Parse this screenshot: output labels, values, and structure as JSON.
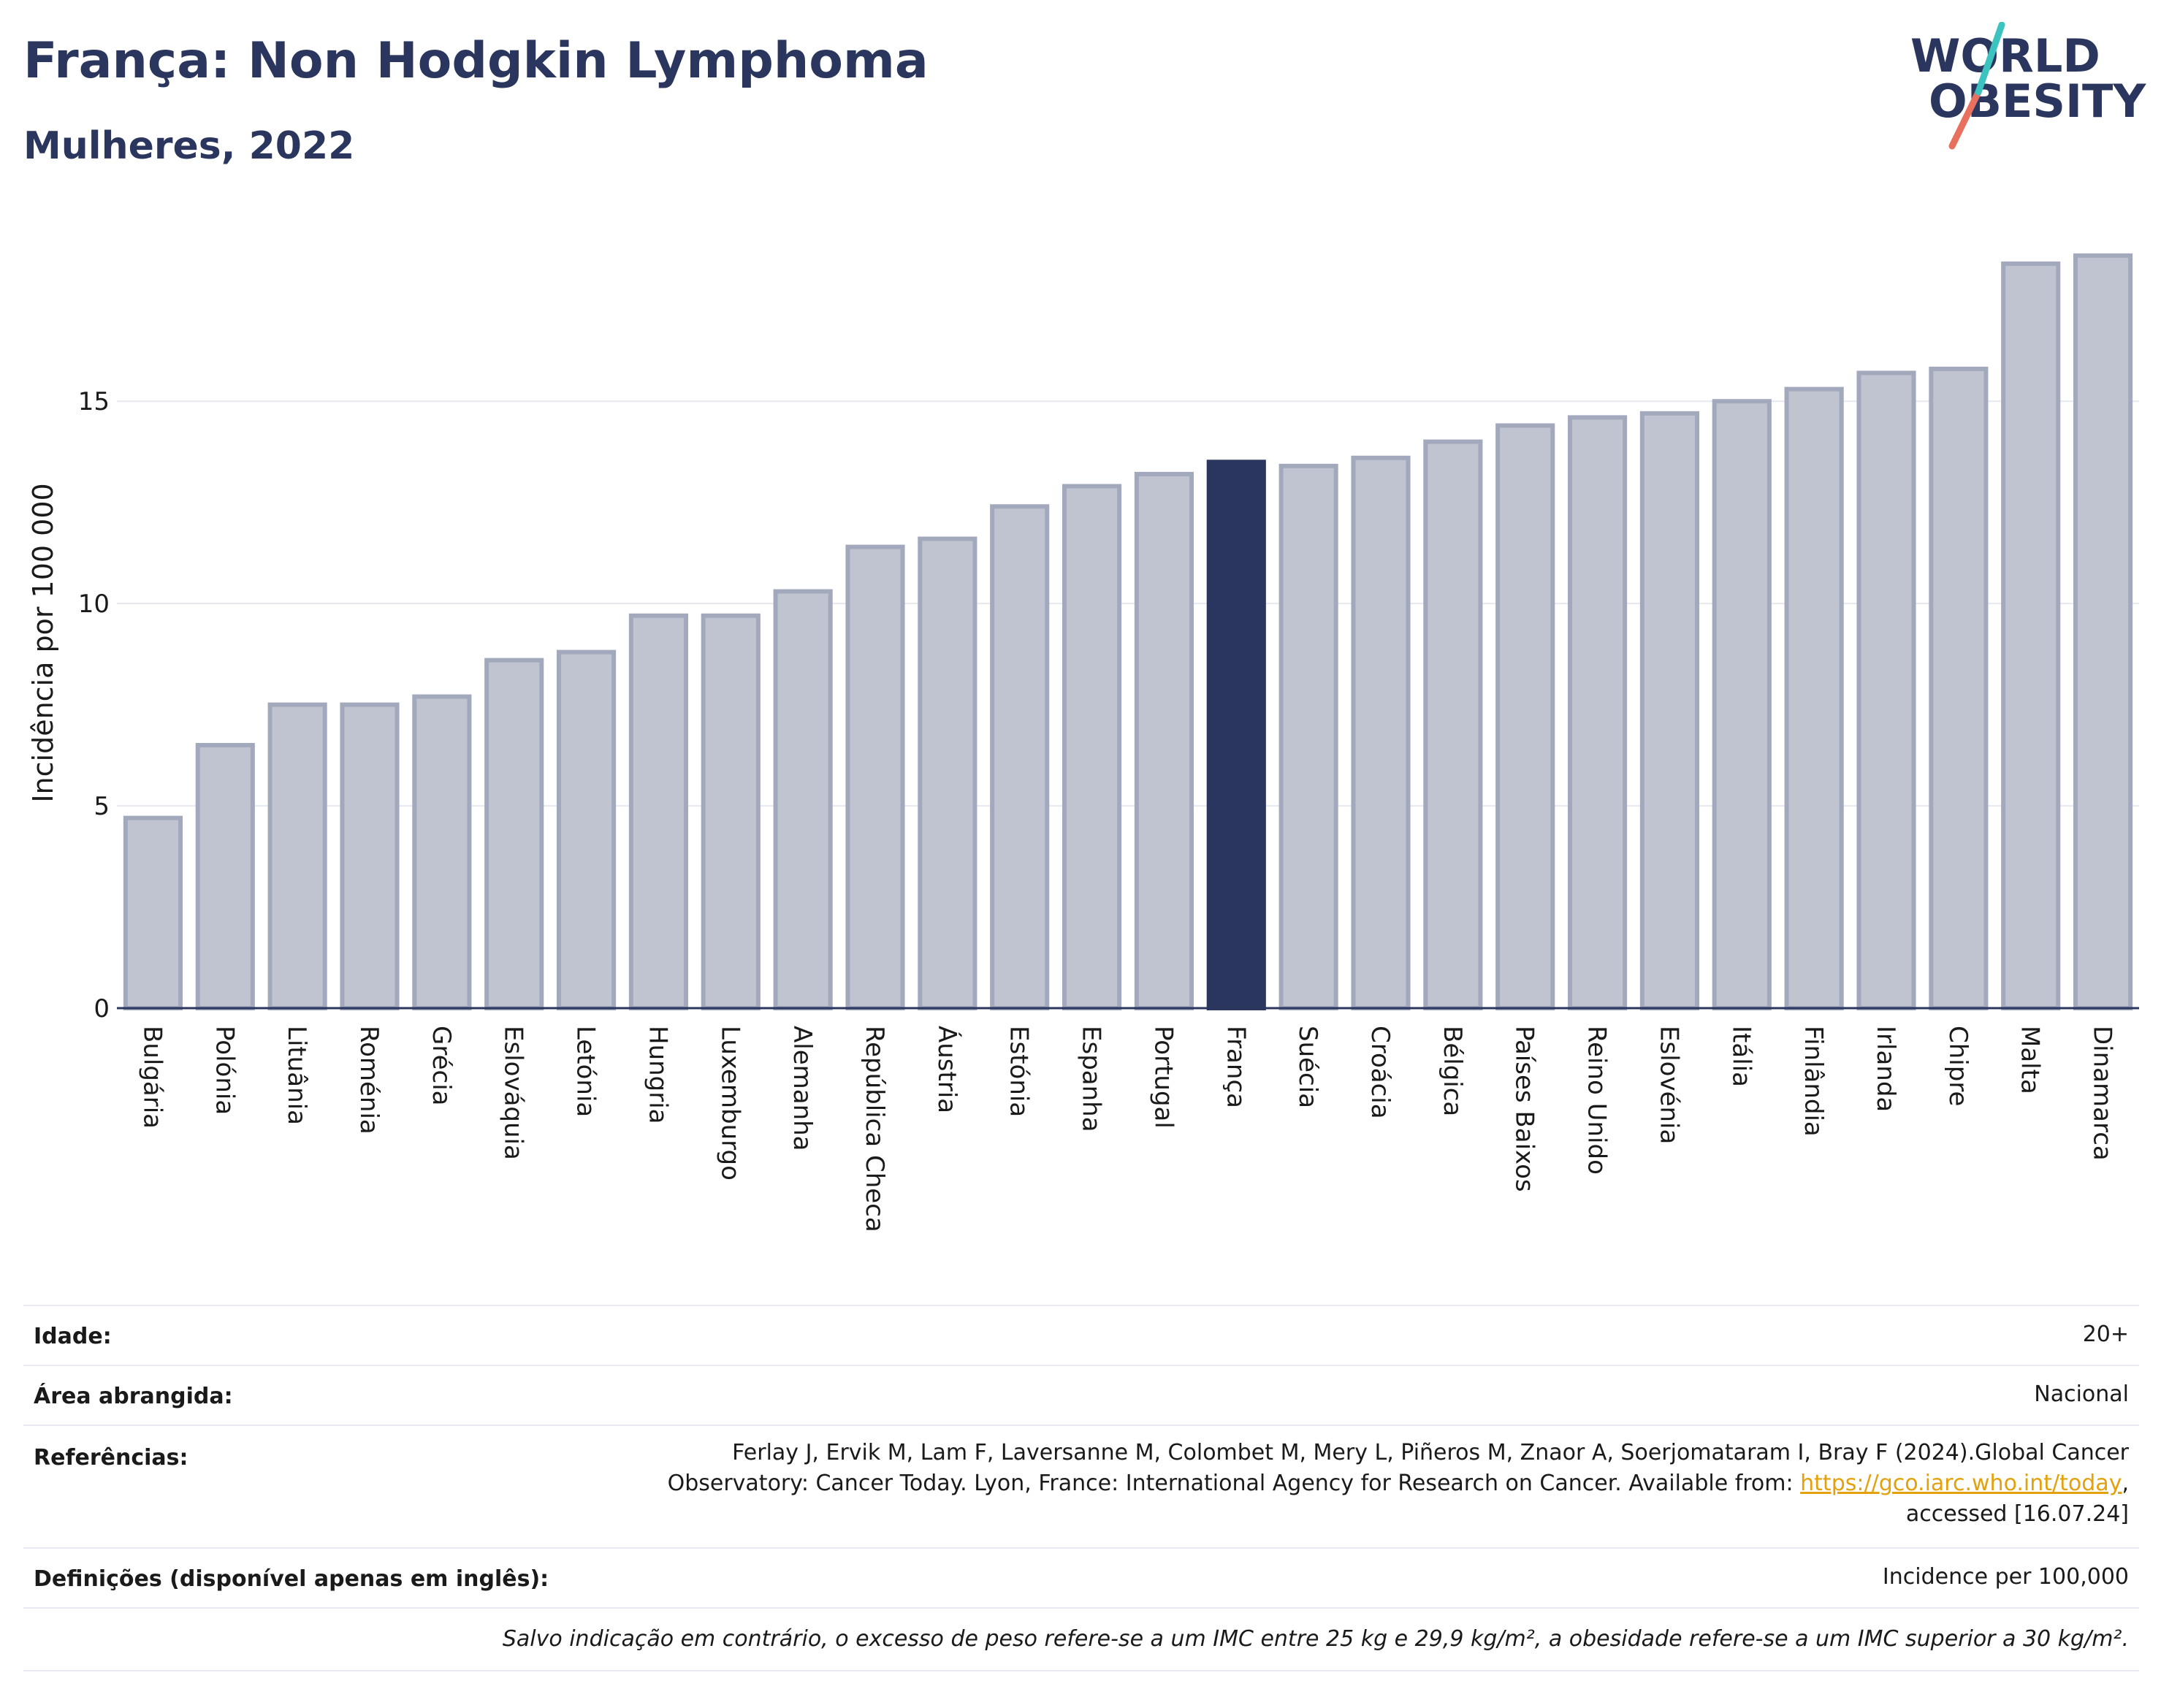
{
  "header": {
    "title": "França: Non Hodgkin Lymphoma",
    "subtitle": "Mulheres, 2022"
  },
  "logo": {
    "line1": "WORLD",
    "line2": "OBESITY"
  },
  "chart_data": {
    "type": "bar",
    "ylabel": "Incidência por 100 000",
    "ylim": [
      0,
      19.5
    ],
    "yticks": [
      0,
      5,
      10,
      15
    ],
    "grid": true,
    "highlight": "França",
    "highlight_color": "#2b365f",
    "bar_color": "#c0c4d0",
    "bar_edge_color": "#a3a9bd",
    "categories": [
      "Bulgária",
      "Polónia",
      "Lituânia",
      "Roménia",
      "Grécia",
      "Eslováquia",
      "Letónia",
      "Hungria",
      "Luxemburgo",
      "Alemanha",
      "República Checa",
      "Áustria",
      "Estónia",
      "Espanha",
      "Portugal",
      "França",
      "Suécia",
      "Croácia",
      "Bélgica",
      "Países Baixos",
      "Reino Unido",
      "Eslovénia",
      "Itália",
      "Finlândia",
      "Irlanda",
      "Chipre",
      "Malta",
      "Dinamarca"
    ],
    "values": [
      4.7,
      6.5,
      7.5,
      7.5,
      7.7,
      8.6,
      8.8,
      9.7,
      9.7,
      10.3,
      11.4,
      11.6,
      12.4,
      12.9,
      13.2,
      13.5,
      13.4,
      13.6,
      14.0,
      14.4,
      14.6,
      14.7,
      15.0,
      15.3,
      15.7,
      15.8,
      18.4,
      18.6
    ]
  },
  "info": {
    "age_label": "Idade:",
    "age_value": "20+",
    "area_label": "Área abrangida:",
    "area_value": "Nacional",
    "refs_label": "Referências:",
    "refs_line1": "Ferlay J, Ervik M, Lam F, Laversanne M, Colombet M, Mery L, Piñeros M, Znaor A, Soerjomataram I, Bray F (2024).Global Cancer",
    "refs_line2": "Observatory: Cancer Today. Lyon, France: International Agency for Research on Cancer. Available from: ",
    "refs_link": "https://gco.iarc.who.int/today",
    "refs_line2_end": ",",
    "refs_line3": "accessed [16.07.24]",
    "def_label": "Definições (disponível apenas em inglês):",
    "def_value": "Incidence per 100,000",
    "note": "Salvo indicação em contrário, o excesso de peso refere-se a um IMC entre 25 kg e 29,9 kg/m², a obesidade refere-se a um IMC superior a 30 kg/m²."
  }
}
